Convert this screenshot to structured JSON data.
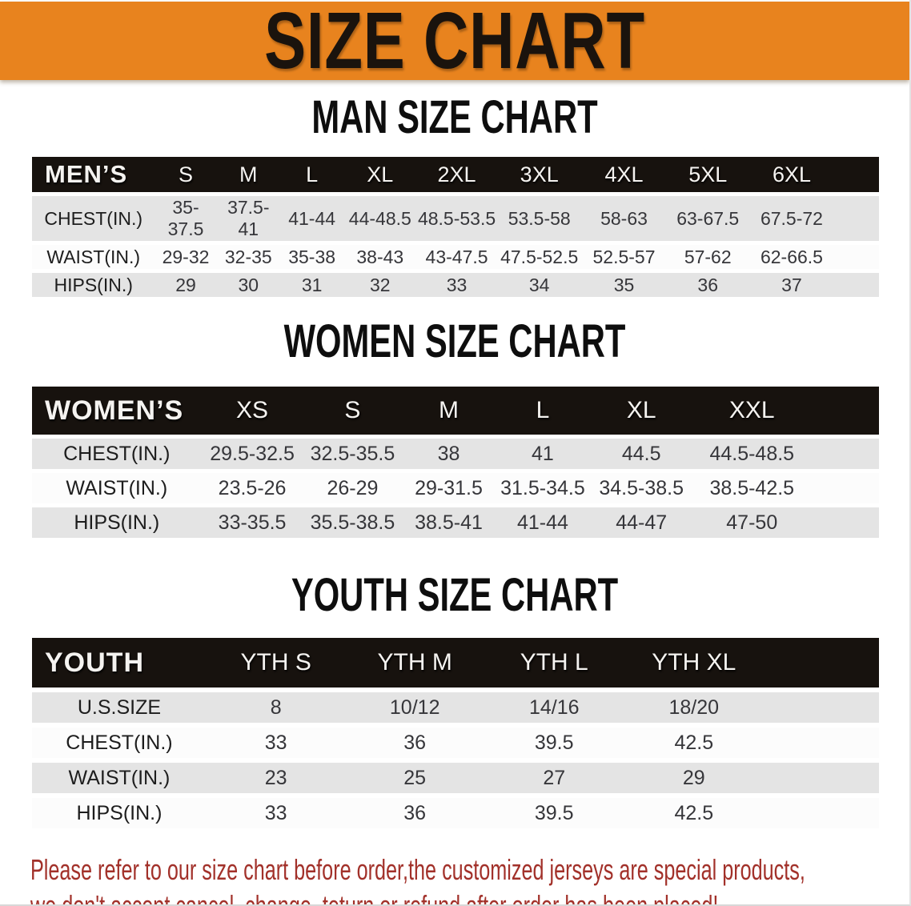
{
  "banner": {
    "title": "SIZE CHART"
  },
  "man": {
    "heading": "MAN SIZE CHART",
    "table": {
      "header": [
        "MEN’S",
        "S",
        "M",
        "L",
        "XL",
        "2XL",
        "3XL",
        "4XL",
        "5XL",
        "6XL"
      ],
      "rows": [
        [
          "CHEST(IN.)",
          "35-37.5",
          "37.5-41",
          "41-44",
          "44-48.5",
          "48.5-53.5",
          "53.5-58",
          "58-63",
          "63-67.5",
          "67.5-72"
        ],
        [
          "WAIST(IN.)",
          "29-32",
          "32-35",
          "35-38",
          "38-43",
          "43-47.5",
          "47.5-52.5",
          "52.5-57",
          "57-62",
          "62-66.5"
        ],
        [
          "HIPS(IN.)",
          "29",
          "30",
          "31",
          "32",
          "33",
          "34",
          "35",
          "36",
          "37"
        ]
      ]
    }
  },
  "women": {
    "heading": "WOMEN SIZE CHART",
    "table": {
      "header": [
        "WOMEN’S",
        "XS",
        "S",
        "M",
        "L",
        "XL",
        "XXL"
      ],
      "rows": [
        [
          "CHEST(IN.)",
          "29.5-32.5",
          "32.5-35.5",
          "38",
          "41",
          "44.5",
          "44.5-48.5"
        ],
        [
          "WAIST(IN.)",
          "23.5-26",
          "26-29",
          "29-31.5",
          "31.5-34.5",
          "34.5-38.5",
          "38.5-42.5"
        ],
        [
          "HIPS(IN.)",
          "33-35.5",
          "35.5-38.5",
          "38.5-41",
          "41-44",
          "44-47",
          "47-50"
        ]
      ]
    }
  },
  "youth": {
    "heading": "YOUTH SIZE CHART",
    "table": {
      "header": [
        "YOUTH",
        "YTH S",
        "YTH M",
        "YTH L",
        "YTH XL"
      ],
      "rows": [
        [
          "U.S.SIZE",
          "8",
          "10/12",
          "14/16",
          "18/20"
        ],
        [
          "CHEST(IN.)",
          "33",
          "36",
          "39.5",
          "42.5"
        ],
        [
          "WAIST(IN.)",
          "23",
          "25",
          "27",
          "29"
        ],
        [
          "HIPS(IN.)",
          "33",
          "36",
          "39.5",
          "42.5"
        ]
      ]
    }
  },
  "disclaimer": {
    "line1": "Please refer to our size chart before order,the customized jerseys are special products,",
    "line2": "we don't accept cancel, change, teturn or refund after order has been placed!"
  },
  "colors": {
    "banner_bg": "#E8831E",
    "header_bar": "#17120E",
    "row_stripe": "#E4E4E4",
    "row_plain": "#FCFCFC",
    "disclaimer_text": "#A2312A"
  }
}
